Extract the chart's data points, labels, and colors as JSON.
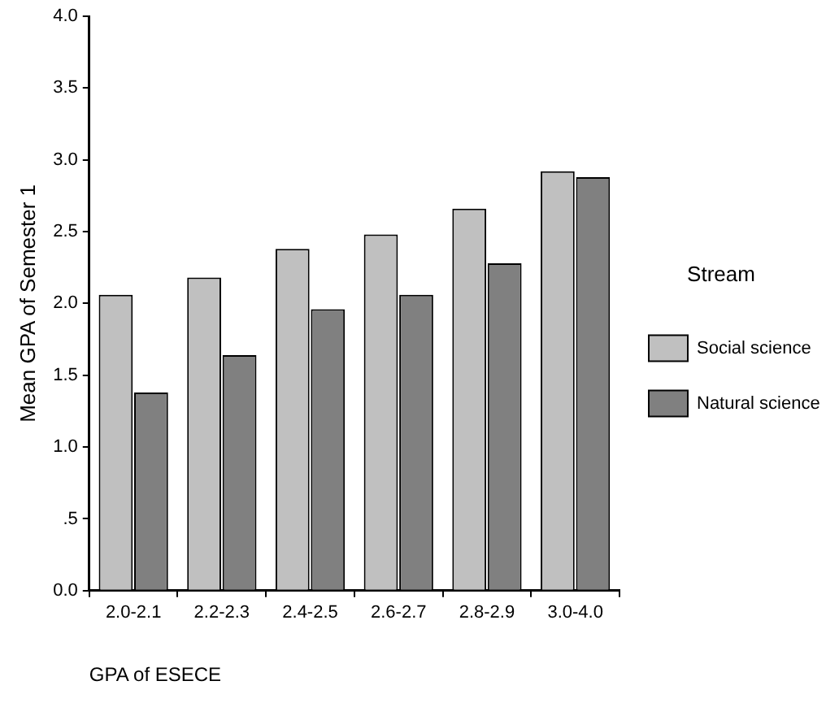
{
  "chart_data": {
    "type": "bar",
    "xlabel": "GPA of ESECE",
    "ylabel": "Mean GPA of Semester 1",
    "legend_title": "Stream",
    "categories": [
      "2.0-2.1",
      "2.2-2.3",
      "2.4-2.5",
      "2.6-2.7",
      "2.8-2.9",
      "3.0-4.0"
    ],
    "series": [
      {
        "name": "Social science",
        "color": "#c0c0c0",
        "values": [
          2.06,
          2.18,
          2.38,
          2.48,
          2.66,
          2.92
        ]
      },
      {
        "name": "Natural science",
        "color": "#808080",
        "values": [
          1.38,
          1.64,
          1.96,
          2.06,
          2.28,
          2.88
        ]
      }
    ],
    "ylim": [
      0,
      4
    ],
    "yticks": [
      {
        "value": 0,
        "label": "0.0"
      },
      {
        "value": 0.5,
        "label": ".5"
      },
      {
        "value": 1,
        "label": "1.0"
      },
      {
        "value": 1.5,
        "label": "1.5"
      },
      {
        "value": 2,
        "label": "2.0"
      },
      2.5,
      {
        "value": 3,
        "label": "3.0"
      },
      3.5,
      {
        "value": 4,
        "label": "4.0"
      }
    ],
    "grid": false,
    "legend": "right"
  }
}
